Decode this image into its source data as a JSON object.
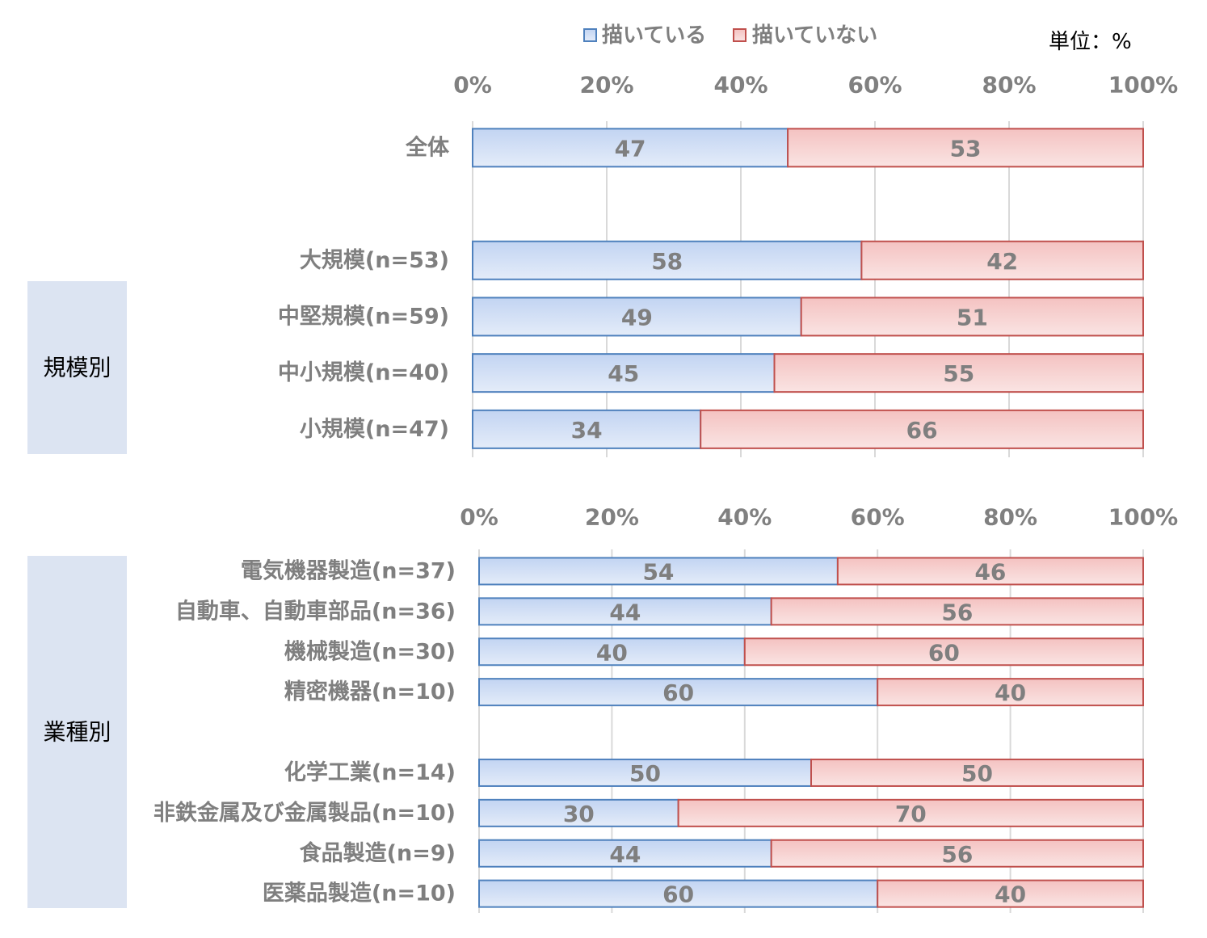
{
  "unit_label": "単位：%",
  "group_box_color": "#dce4f2",
  "chart_data": [
    {
      "type": "bar",
      "orientation": "horizontal",
      "stacking": "percent",
      "group_label": "規模別",
      "categories": [
        "全体",
        "大規模(n=53)",
        "中堅規模(n=59)",
        "中小規模(n=40)",
        "小規模(n=47)"
      ],
      "series": [
        {
          "name": "描いている",
          "values": [
            47,
            58,
            49,
            45,
            34
          ],
          "color": "#4f81bd",
          "fill": "#c2d4f2"
        },
        {
          "name": "描いていない",
          "values": [
            53,
            42,
            51,
            55,
            66
          ],
          "color": "#c0504d",
          "fill": "#f4c2c1"
        }
      ],
      "ticks": [
        "0%",
        "20%",
        "40%",
        "60%",
        "80%",
        "100%"
      ],
      "xlim": [
        0,
        100
      ],
      "grid": true,
      "legend": "top",
      "data_labels": true
    },
    {
      "type": "bar",
      "orientation": "horizontal",
      "stacking": "percent",
      "group_label": "業種別",
      "categories": [
        "電気機器製造(n=37)",
        "自動車、自動車部品(n=36)",
        "機械製造(n=30)",
        "精密機器(n=10)",
        "化学工業(n=14)",
        "非鉄金属及び金属製品(n=10)",
        "食品製造(n=9)",
        "医薬品製造(n=10)"
      ],
      "series": [
        {
          "name": "描いている",
          "values": [
            54,
            44,
            40,
            60,
            50,
            30,
            44,
            60
          ],
          "color": "#4f81bd",
          "fill": "#c2d4f2"
        },
        {
          "name": "描いていない",
          "values": [
            46,
            56,
            60,
            40,
            50,
            70,
            56,
            40
          ],
          "color": "#c0504d",
          "fill": "#f4c2c1"
        }
      ],
      "ticks": [
        "0%",
        "20%",
        "40%",
        "60%",
        "80%",
        "100%"
      ],
      "xlim": [
        0,
        100
      ],
      "grid": true,
      "data_labels": true
    }
  ]
}
